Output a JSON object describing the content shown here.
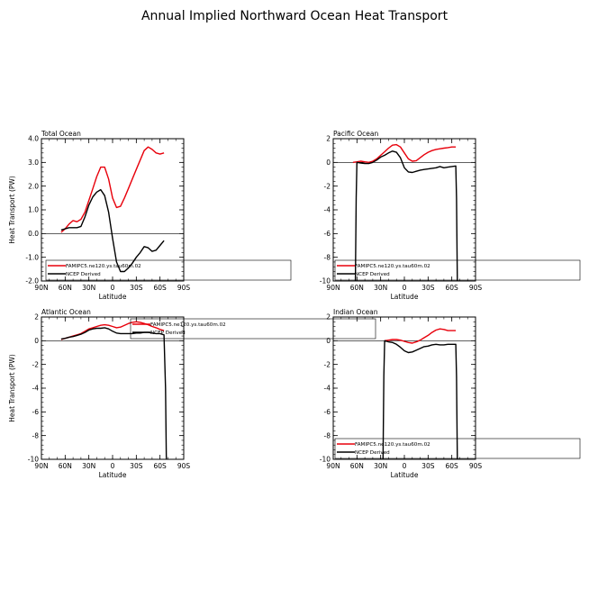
{
  "figure": {
    "title": "Annual Implied Northward Ocean Heat Transport"
  },
  "chart_data": [
    {
      "type": "line",
      "title": "Total Ocean",
      "xlabel": "Latitude",
      "ylabel": "Heat Transport (PW)",
      "xlim": [
        -90,
        90
      ],
      "ylim": [
        -2.0,
        4.0
      ],
      "xticks": [
        -90,
        -60,
        -30,
        0,
        30,
        60,
        90
      ],
      "xtick_labels": [
        "90N",
        "60N",
        "30N",
        "0",
        "30S",
        "60S",
        "90S"
      ],
      "yticks": [
        -2,
        -1,
        0,
        1,
        2,
        3,
        4
      ],
      "ytick_labels": [
        "-2.0",
        "-1.0",
        "0.0",
        "1.0",
        "2.0",
        "3.0",
        "4.0"
      ],
      "zero_line": true,
      "series": [
        {
          "name": "FAMIPC5.ne120.ys.tau60m.02",
          "color": "#e8000b",
          "x": [
            -65,
            -60,
            -55,
            -50,
            -45,
            -40,
            -35,
            -30,
            -25,
            -20,
            -15,
            -10,
            -5,
            0,
            5,
            10,
            15,
            20,
            25,
            30,
            35,
            40,
            45,
            50,
            55,
            60,
            65
          ],
          "y": [
            0.05,
            0.2,
            0.4,
            0.55,
            0.5,
            0.6,
            0.9,
            1.4,
            1.9,
            2.4,
            2.8,
            2.8,
            2.3,
            1.5,
            1.1,
            1.15,
            1.5,
            1.9,
            2.3,
            2.7,
            3.1,
            3.5,
            3.65,
            3.55,
            3.4,
            3.35,
            3.4
          ]
        },
        {
          "name": "NCEP Derived",
          "color": "#000000",
          "x": [
            -65,
            -60,
            -55,
            -50,
            -45,
            -40,
            -35,
            -30,
            -25,
            -20,
            -15,
            -10,
            -5,
            0,
            5,
            10,
            15,
            20,
            25,
            30,
            35,
            40,
            45,
            50,
            55,
            60,
            65
          ],
          "y": [
            0.15,
            0.2,
            0.25,
            0.25,
            0.25,
            0.3,
            0.7,
            1.2,
            1.55,
            1.75,
            1.85,
            1.6,
            0.9,
            -0.2,
            -1.2,
            -1.6,
            -1.6,
            -1.45,
            -1.25,
            -1.0,
            -0.8,
            -0.55,
            -0.6,
            -0.75,
            -0.7,
            -0.5,
            -0.3
          ]
        }
      ],
      "legend": "inside-lower, spilling right"
    },
    {
      "type": "line",
      "title": "Pacific Ocean",
      "xlabel": "Latitude",
      "ylabel": "",
      "xlim": [
        -90,
        90
      ],
      "ylim": [
        -10,
        2
      ],
      "xticks": [
        -90,
        -60,
        -30,
        0,
        30,
        60,
        90
      ],
      "xtick_labels": [
        "90N",
        "60N",
        "30N",
        "0",
        "30S",
        "60S",
        "90S"
      ],
      "yticks": [
        -10,
        -8,
        -6,
        -4,
        -2,
        0,
        2
      ],
      "ytick_labels": [
        "-10",
        "-8",
        "-6",
        "-4",
        "-2",
        "0",
        "2"
      ],
      "zero_line": true,
      "series": [
        {
          "name": "FAMIPC5.ne120.ys.tau60m.02",
          "color": "#e8000b",
          "x": [
            -65,
            -60,
            -55,
            -50,
            -45,
            -40,
            -35,
            -30,
            -25,
            -20,
            -15,
            -10,
            -5,
            0,
            5,
            10,
            15,
            20,
            25,
            30,
            35,
            40,
            45,
            50,
            55,
            60,
            65
          ],
          "y": [
            0.0,
            0.05,
            0.1,
            0.05,
            0.0,
            0.1,
            0.3,
            0.6,
            0.9,
            1.2,
            1.45,
            1.5,
            1.3,
            0.8,
            0.3,
            0.1,
            0.15,
            0.4,
            0.65,
            0.85,
            1.0,
            1.1,
            1.15,
            1.2,
            1.25,
            1.3,
            1.3
          ]
        },
        {
          "name": "NCEP Derived",
          "color": "#000000",
          "x": [
            -62,
            -61,
            -60,
            -55,
            -50,
            -45,
            -40,
            -35,
            -30,
            -25,
            -20,
            -15,
            -10,
            -5,
            0,
            5,
            10,
            15,
            20,
            25,
            30,
            35,
            40,
            45,
            50,
            55,
            60,
            65,
            66,
            67
          ],
          "y": [
            -10,
            -3,
            0.0,
            -0.05,
            -0.1,
            -0.1,
            0.0,
            0.2,
            0.45,
            0.6,
            0.8,
            0.95,
            0.85,
            0.4,
            -0.45,
            -0.8,
            -0.85,
            -0.75,
            -0.65,
            -0.6,
            -0.55,
            -0.5,
            -0.45,
            -0.35,
            -0.45,
            -0.4,
            -0.35,
            -0.3,
            -3,
            -10
          ]
        }
      ],
      "legend": "inside-lower, spilling right"
    },
    {
      "type": "line",
      "title": "Atlantic Ocean",
      "xlabel": "Latitude",
      "ylabel": "Heat Transport (PW)",
      "xlim": [
        -90,
        90
      ],
      "ylim": [
        -10,
        2
      ],
      "xticks": [
        -90,
        -60,
        -30,
        0,
        30,
        60,
        90
      ],
      "xtick_labels": [
        "90N",
        "60N",
        "30N",
        "0",
        "30S",
        "60S",
        "90S"
      ],
      "yticks": [
        -10,
        -8,
        -6,
        -4,
        -2,
        0,
        2
      ],
      "ytick_labels": [
        "-10",
        "-8",
        "-6",
        "-4",
        "-2",
        "0",
        "2"
      ],
      "zero_line": true,
      "series": [
        {
          "name": "FAMIPC5.ne120.ys.tau60m.02",
          "color": "#e8000b",
          "x": [
            -65,
            -60,
            -55,
            -50,
            -45,
            -40,
            -35,
            -30,
            -25,
            -20,
            -15,
            -10,
            -5,
            0,
            5,
            10,
            15,
            20,
            25,
            30,
            35,
            40,
            45,
            50,
            55,
            60,
            65
          ],
          "y": [
            0.1,
            0.2,
            0.3,
            0.4,
            0.5,
            0.6,
            0.8,
            1.0,
            1.1,
            1.2,
            1.3,
            1.35,
            1.3,
            1.2,
            1.1,
            1.15,
            1.3,
            1.45,
            1.55,
            1.6,
            1.55,
            1.45,
            1.35,
            1.2,
            1.1,
            0.95,
            0.85
          ]
        },
        {
          "name": "NCEP Derived",
          "color": "#000000",
          "x": [
            -65,
            -60,
            -55,
            -50,
            -45,
            -40,
            -35,
            -30,
            -25,
            -20,
            -15,
            -10,
            -5,
            0,
            5,
            10,
            15,
            20,
            25,
            30,
            35,
            40,
            45,
            50,
            55,
            60,
            65,
            67,
            68
          ],
          "y": [
            0.15,
            0.2,
            0.3,
            0.35,
            0.45,
            0.55,
            0.7,
            0.9,
            1.0,
            1.05,
            1.05,
            1.1,
            1.0,
            0.8,
            0.65,
            0.6,
            0.6,
            0.6,
            0.6,
            0.65,
            0.65,
            0.7,
            0.7,
            0.65,
            0.6,
            0.6,
            0.5,
            -4,
            -10
          ]
        }
      ],
      "legend": "top-right, spilling right"
    },
    {
      "type": "line",
      "title": "Indian Ocean",
      "xlabel": "Latitude",
      "ylabel": "",
      "xlim": [
        -90,
        90
      ],
      "ylim": [
        -10,
        2
      ],
      "xticks": [
        -90,
        -60,
        -30,
        0,
        30,
        60,
        90
      ],
      "xtick_labels": [
        "90N",
        "60N",
        "30N",
        "0",
        "30S",
        "60S",
        "90S"
      ],
      "yticks": [
        -10,
        -8,
        -6,
        -4,
        -2,
        0,
        2
      ],
      "ytick_labels": [
        "-10",
        "-8",
        "-6",
        "-4",
        "-2",
        "0",
        "2"
      ],
      "zero_line": true,
      "series": [
        {
          "name": "FAMIPC5.ne120.ys.tau60m.02",
          "color": "#e8000b",
          "x": [
            -25,
            -20,
            -15,
            -10,
            -5,
            0,
            5,
            10,
            15,
            20,
            25,
            30,
            35,
            40,
            45,
            50,
            55,
            60,
            65
          ],
          "y": [
            0.0,
            0.05,
            0.1,
            0.1,
            0.05,
            -0.05,
            -0.15,
            -0.2,
            -0.1,
            0.05,
            0.25,
            0.45,
            0.7,
            0.9,
            1.0,
            0.95,
            0.85,
            0.85,
            0.85
          ]
        },
        {
          "name": "NCEP Derived",
          "color": "#000000",
          "x": [
            -27,
            -26,
            -25,
            -20,
            -15,
            -10,
            -5,
            0,
            5,
            10,
            15,
            20,
            25,
            30,
            35,
            40,
            45,
            50,
            55,
            60,
            65,
            66,
            67
          ],
          "y": [
            -10,
            -3,
            0.0,
            -0.1,
            -0.15,
            -0.3,
            -0.55,
            -0.85,
            -1.0,
            -0.95,
            -0.8,
            -0.65,
            -0.5,
            -0.45,
            -0.35,
            -0.3,
            -0.35,
            -0.35,
            -0.3,
            -0.3,
            -0.3,
            -3,
            -10
          ]
        }
      ],
      "legend": "bottom, spilling right"
    }
  ]
}
